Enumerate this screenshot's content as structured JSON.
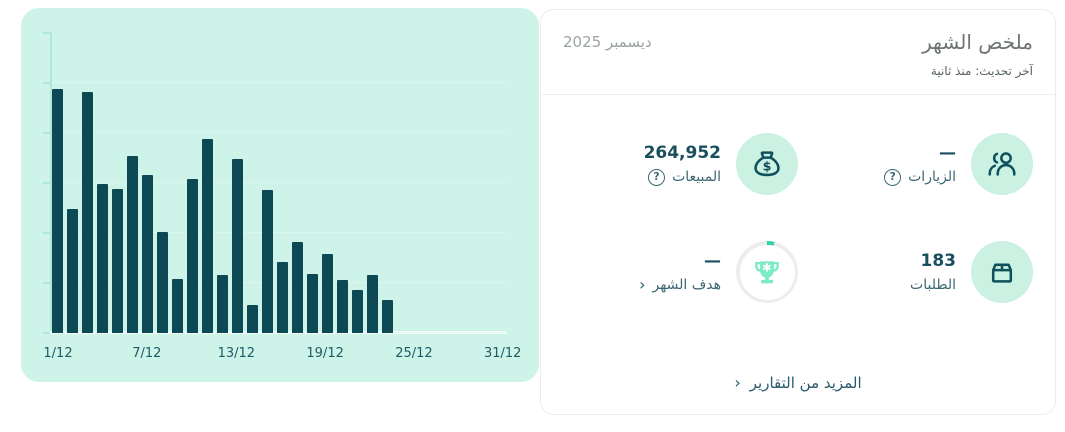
{
  "chart_data": {
    "type": "bar",
    "title": "",
    "xlabel": "",
    "ylabel": "",
    "x_tick_labels": [
      "1/12",
      "7/12",
      "13/12",
      "19/12",
      "25/12",
      "31/12"
    ],
    "x_range_days": [
      1,
      31
    ],
    "days_with_data": 23,
    "values": [
      24400,
      12400,
      24100,
      14900,
      14400,
      17700,
      15800,
      10100,
      5400,
      15400,
      19400,
      5800,
      17400,
      2800,
      14300,
      7100,
      9100,
      5900,
      7900,
      5300,
      4300,
      5800,
      3300
    ],
    "ylim": [
      0,
      25000
    ],
    "y_axis_labeled": false,
    "grid": "faint horizontal",
    "legend": "none",
    "bar_color": "#0c4954",
    "panel_background": "#cef3e8"
  },
  "summary": {
    "title": "ملخص الشهر",
    "period": "ديسمبر 2025",
    "last_updated": "آخر تحديث: منذ ثانية",
    "help_glyph": "?",
    "chevron_glyph": "‹",
    "stats": [
      {
        "label": "الزيارات",
        "value": "—",
        "icon": "users-icon",
        "has_help": true
      },
      {
        "label": "المبيعات",
        "value": "264,952",
        "icon": "money-bag-icon",
        "has_help": true
      },
      {
        "label": "الطلبات",
        "value": "183",
        "icon": "box-icon",
        "has_help": false
      },
      {
        "label": "هدف الشهر",
        "value": "—",
        "icon": "trophy-icon",
        "is_link": true
      }
    ],
    "more_link": "المزيد من التقارير"
  },
  "colors": {
    "accent_teal_dark": "#0c4954",
    "mint_panel": "#cef3e8",
    "mint_circle": "#cbf1e3",
    "trophy_mint": "#7deac6",
    "ring_gray": "#ededed",
    "ring_progress": "#2fd3a5",
    "value_text": "#194f5d",
    "label_text": "#3c6874",
    "card_border": "#ececec"
  }
}
